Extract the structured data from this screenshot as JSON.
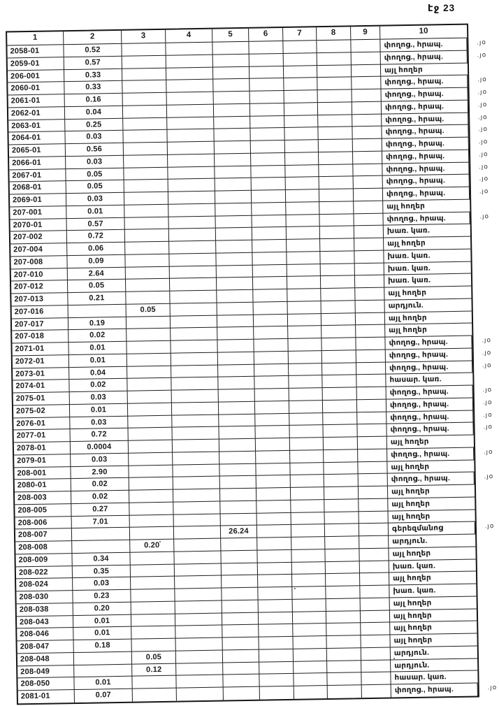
{
  "page": {
    "label": "էջ 23"
  },
  "table": {
    "headers": [
      "1",
      "2",
      "3",
      "4",
      "5",
      "6",
      "7",
      "8",
      "9",
      "10"
    ],
    "margin_note": ".յօ",
    "rows": [
      {
        "c1": "2058-01",
        "c2": "0.52",
        "c10": "փողոց., հրապ.",
        "note": true
      },
      {
        "c1": "2059-01",
        "c2": "0.57",
        "c10": "փողոց., հրապ.",
        "note": true
      },
      {
        "c1": "206-001",
        "c2": "0.33",
        "c10": "այլ հողեր",
        "note": false
      },
      {
        "c1": "2060-01",
        "c2": "0.33",
        "c10": "փողոց., հրապ.",
        "note": true
      },
      {
        "c1": "2061-01",
        "c2": "0.16",
        "c10": "փողոց., հրապ.",
        "note": true
      },
      {
        "c1": "2062-01",
        "c2": "0.04",
        "c10": "փողոց., հրապ.",
        "note": true
      },
      {
        "c1": "2063-01",
        "c2": "0.25",
        "c10": "փողոց., հրապ.",
        "note": true
      },
      {
        "c1": "2064-01",
        "c2": "0.03",
        "c10": "փողոց., հրապ.",
        "note": true
      },
      {
        "c1": "2065-01",
        "c2": "0.56",
        "c10": "փողոց., հրապ.",
        "note": true
      },
      {
        "c1": "2066-01",
        "c2": "0.03",
        "c10": "փողոց., հրապ.",
        "note": true
      },
      {
        "c1": "2067-01",
        "c2": "0.05",
        "c10": "փողոց., հրապ.",
        "note": true
      },
      {
        "c1": "2068-01",
        "c2": "0.05",
        "c10": "փողոց., հրապ.",
        "note": true
      },
      {
        "c1": "2069-01",
        "c2": "0.03",
        "c10": "փողոց., հրապ.",
        "note": true
      },
      {
        "c1": "207-001",
        "c2": "0.01",
        "c10": "այլ հողեր",
        "note": false
      },
      {
        "c1": "2070-01",
        "c2": "0.57",
        "c10": "փողոց., հրապ.",
        "note": true
      },
      {
        "c1": "207-002",
        "c2": "0.72",
        "c10": "խառ. կառ.",
        "note": false
      },
      {
        "c1": "207-004",
        "c2": "0.06",
        "c10": "այլ հողեր",
        "note": false
      },
      {
        "c1": "207-008",
        "c2": "0.09",
        "c10": "խառ. կառ.",
        "note": false
      },
      {
        "c1": "207-010",
        "c2": "2.64",
        "c10": "խառ. կառ.",
        "note": false
      },
      {
        "c1": "207-012",
        "c2": "0.05",
        "c10": "խառ. կառ.",
        "note": false
      },
      {
        "c1": "207-013",
        "c2": "0.21",
        "c10": "այլ հողեր",
        "note": false
      },
      {
        "c1": "207-016",
        "c3": "0.05",
        "c10": "արդյուն.",
        "note": false
      },
      {
        "c1": "207-017",
        "c2": "0.19",
        "c10": "այլ հողեր",
        "note": false
      },
      {
        "c1": "207-018",
        "c2": "0.02",
        "c10": "այլ հողեր",
        "note": false
      },
      {
        "c1": "2071-01",
        "c2": "0.01",
        "c10": "փողոց., հրապ.",
        "note": true
      },
      {
        "c1": "2072-01",
        "c2": "0.01",
        "c10": "փողոց., հրապ.",
        "note": true
      },
      {
        "c1": "2073-01",
        "c2": "0.04",
        "c10": "փողոց., հրապ.",
        "note": true
      },
      {
        "c1": "2074-01",
        "c2": "0.02",
        "c10": "հասար. կառ.",
        "note": false
      },
      {
        "c1": "2075-01",
        "c2": "0.03",
        "c10": "փողոց., հրապ.",
        "note": true
      },
      {
        "c1": "2075-02",
        "c2": "0.01",
        "c10": "փողոց., հրապ.",
        "note": true
      },
      {
        "c1": "2076-01",
        "c2": "0.03",
        "c10": "փողոց., հրապ.",
        "note": true
      },
      {
        "c1": "2077-01",
        "c2": "0.72",
        "c10": "փողոց., հրապ.",
        "note": true
      },
      {
        "c1": "2078-01",
        "c2": "0.0004",
        "c10": "այլ հողեր",
        "note": false
      },
      {
        "c1": "2079-01",
        "c2": "0.03",
        "c10": "փողոց., հրապ.",
        "note": true
      },
      {
        "c1": "208-001",
        "c2": "2.90",
        "c10": "այլ հողեր",
        "note": false
      },
      {
        "c1": "2080-01",
        "c2": "0.02",
        "c10": "փողոց., հրապ.",
        "note": true
      },
      {
        "c1": "208-003",
        "c2": "0.02",
        "c10": "այլ հողեր",
        "note": false
      },
      {
        "c1": "208-005",
        "c2": "0.27",
        "c10": "այլ հողեր",
        "note": false
      },
      {
        "c1": "208-006",
        "c2": "7.01",
        "c10": "այլ հողեր",
        "note": false
      },
      {
        "c1": "208-007",
        "c5": "26.24",
        "c10": "գերեզմանոց",
        "note": true
      },
      {
        "c1": "208-008",
        "c3": "0.20",
        "c10": "արդյուն.",
        "note": false
      },
      {
        "c1": "208-009",
        "c2": "0.34",
        "c10": "այլ հողեր",
        "note": false
      },
      {
        "c1": "208-022",
        "c2": "0.35",
        "c10": "խառ. կառ.",
        "note": false
      },
      {
        "c1": "208-024",
        "c2": "0.03",
        "c10": "այլ հողեր",
        "note": false
      },
      {
        "c1": "208-030",
        "c2": "0.23",
        "c10": "խառ. կառ.",
        "note": false
      },
      {
        "c1": "208-038",
        "c2": "0.20",
        "c10": "այլ հողեր",
        "note": false
      },
      {
        "c1": "208-043",
        "c2": "0.01",
        "c10": "այլ հողեր",
        "note": false
      },
      {
        "c1": "208-046",
        "c2": "0.01",
        "c10": "այլ հողեր",
        "note": false
      },
      {
        "c1": "208-047",
        "c2": "0.18",
        "c10": "այլ հողեր",
        "note": false
      },
      {
        "c1": "208-048",
        "c3": "0.05",
        "c10": "արդյուն.",
        "note": false
      },
      {
        "c1": "208-049",
        "c3": "0.12",
        "c10": "արդյուն.",
        "note": false
      },
      {
        "c1": "208-050",
        "c2": "0.01",
        "c10": "հասար. կառ.",
        "note": false
      },
      {
        "c1": "2081-01",
        "c2": "0.07",
        "c10": "փողոց., հրապ.",
        "note": true
      }
    ]
  }
}
